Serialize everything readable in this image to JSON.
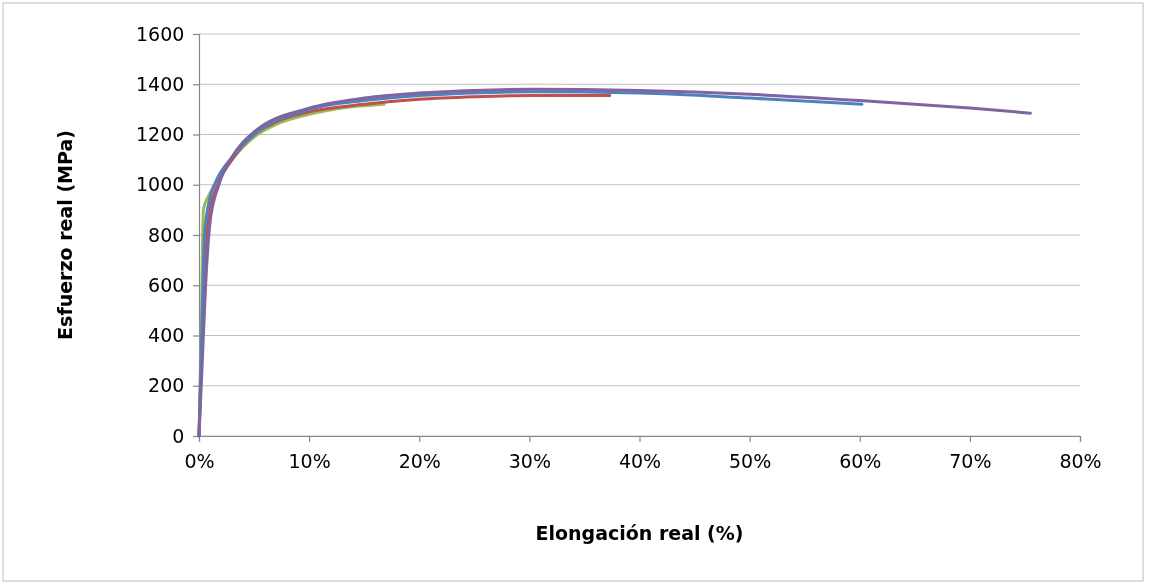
{
  "chart_data": {
    "type": "line",
    "xlabel": "Elongación real (%)",
    "ylabel": "Esfuerzo real (MPa)",
    "xlim": [
      0,
      80
    ],
    "xticks": [
      {
        "value": 0,
        "label": "0%"
      },
      {
        "value": 10,
        "label": "10%"
      },
      {
        "value": 20,
        "label": "20%"
      },
      {
        "value": 30,
        "label": "30%"
      },
      {
        "value": 40,
        "label": "40%"
      },
      {
        "value": 50,
        "label": "50%"
      },
      {
        "value": 60,
        "label": "60%"
      },
      {
        "value": 70,
        "label": "70%"
      },
      {
        "value": 80,
        "label": "80%"
      }
    ],
    "ylim": [
      0,
      1600
    ],
    "yticks": [
      0,
      200,
      400,
      600,
      800,
      1000,
      1200,
      1400,
      1600
    ],
    "grid": "y",
    "marker": "none",
    "line_style": "solid",
    "series": [
      {
        "color": "#9bbb59",
        "x": [
          0,
          0.2,
          0.3,
          0.4,
          0.8,
          1.5,
          3,
          5,
          7,
          10,
          13,
          16.8
        ],
        "values": [
          0,
          400,
          700,
          900,
          950,
          1000,
          1100,
          1190,
          1240,
          1280,
          1305,
          1320
        ]
      },
      {
        "color": "#c0504d",
        "x": [
          0,
          0.3,
          0.6,
          1,
          1.7,
          3,
          5,
          7,
          10,
          15,
          20,
          25,
          30,
          37.3
        ],
        "values": [
          0,
          400,
          750,
          900,
          1000,
          1100,
          1200,
          1250,
          1290,
          1320,
          1340,
          1350,
          1355,
          1355
        ]
      },
      {
        "color": "#4f81bd",
        "x": [
          0,
          0.3,
          0.5,
          1,
          1.5,
          3,
          5,
          10,
          15,
          20,
          30,
          40,
          50,
          60.2
        ],
        "values": [
          0,
          500,
          800,
          950,
          1010,
          1110,
          1200,
          1300,
          1335,
          1355,
          1370,
          1365,
          1345,
          1320
        ]
      },
      {
        "color": "#8064a2",
        "x": [
          0,
          0.3,
          0.6,
          1,
          1.8,
          3,
          5,
          10,
          15,
          20,
          30,
          40,
          50,
          60,
          70,
          75.5
        ],
        "values": [
          0,
          300,
          600,
          850,
          1000,
          1110,
          1210,
          1305,
          1345,
          1365,
          1380,
          1375,
          1360,
          1335,
          1305,
          1285
        ]
      }
    ]
  }
}
